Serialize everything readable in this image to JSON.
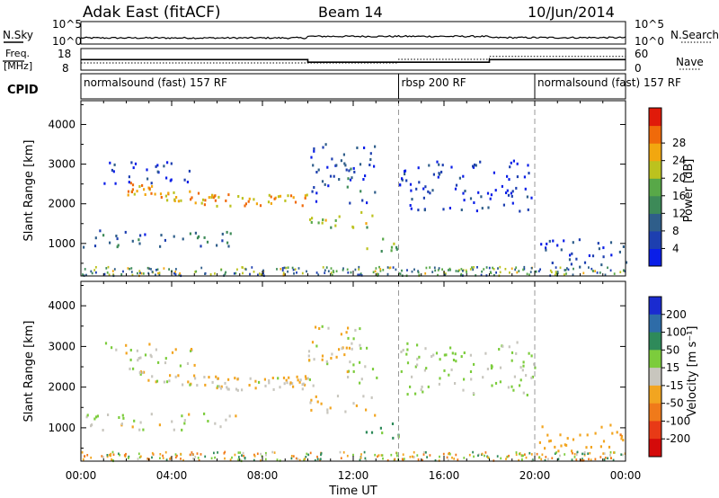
{
  "header": {
    "title": "Adak East (fitACF)",
    "beam": "Beam 14",
    "date": "10/Jun/2014"
  },
  "panels": {
    "noise": {
      "left_label": "N.Sky",
      "left_ticks": [
        "10^5",
        "10^0"
      ],
      "right_label": "N.Search",
      "right_ticks": [
        "10^5",
        "10^0"
      ]
    },
    "freq": {
      "left_label_1": "Freq.",
      "left_label_2": "[MHz]",
      "left_ticks": [
        "18",
        "8"
      ],
      "right_label": "Nave",
      "right_ticks": [
        "60",
        "0"
      ]
    },
    "cpid": {
      "label": "CPID",
      "segments": [
        {
          "text": "normalsound (fast) 157 RF",
          "start_h": 0,
          "end_h": 14
        },
        {
          "text": "rbsp 200 RF",
          "start_h": 14,
          "end_h": 20
        },
        {
          "text": "normalsound (fast) 157 RF",
          "start_h": 20,
          "end_h": 24
        }
      ]
    },
    "power": {
      "ylabel": "Slant Range [km]",
      "cbar_label": "Power [dB]"
    },
    "velocity": {
      "ylabel": "Slant Range [km]",
      "cbar_label": "Velocity [m s⁻¹]"
    },
    "xlabel": "Time UT"
  },
  "chart_data": {
    "type": "heatmap",
    "x_ticks": [
      "00:00",
      "04:00",
      "08:00",
      "12:00",
      "16:00",
      "20:00",
      "00:00"
    ],
    "xlim_hours": [
      0,
      24
    ],
    "y_ticks": [
      1000,
      2000,
      3000,
      4000
    ],
    "ylim_km": [
      180,
      4600
    ],
    "power_scale": {
      "ticks": [
        4,
        8,
        12,
        16,
        20,
        24,
        28
      ],
      "colors": [
        "#0a1ee8",
        "#1d3fb0",
        "#2f5e8a",
        "#3d8a58",
        "#58a848",
        "#bcc21e",
        "#f2a70f",
        "#f06a0a",
        "#e01a0a"
      ]
    },
    "velocity_scale": {
      "ticks": [
        200,
        100,
        50,
        15,
        -15,
        -50,
        -100,
        -200
      ],
      "colors": [
        "#1a2bd0",
        "#2e6ca8",
        "#2e8a5a",
        "#7ccc3c",
        "#c8c6be",
        "#f2a520",
        "#f07a1a",
        "#e83a16",
        "#d40a0a"
      ]
    },
    "noise": {
      "n_sky_log10_before_10UT": 0.8,
      "n_sky_log10_after_10UT": 1.3,
      "n_sky_log10_after_18UT": 0.9
    },
    "frequency_mhz": [
      {
        "start_h": 0,
        "end_h": 10,
        "value": 12.8
      },
      {
        "start_h": 10,
        "end_h": 18,
        "value": 11.0
      },
      {
        "start_h": 18,
        "end_h": 24,
        "value": 12.8
      }
    ],
    "nave": [
      {
        "start_h": 0,
        "end_h": 14,
        "value": 15
      },
      {
        "start_h": 14,
        "end_h": 18,
        "value": 30
      },
      {
        "start_h": 18,
        "end_h": 24,
        "value": 42
      }
    ],
    "mode_change_hours": [
      14,
      20
    ],
    "scatter_regions": [
      {
        "name": "main",
        "t0": 2.0,
        "t1": 10.0,
        "r0": 1700,
        "r1": 2600,
        "power": 24,
        "velocity": -5
      },
      {
        "name": "lower",
        "t0": 0.0,
        "t1": 7.0,
        "r0": 900,
        "r1": 1350,
        "power": 10,
        "velocity": 0
      },
      {
        "name": "upper",
        "t0": 1.0,
        "t1": 5.0,
        "r0": 2500,
        "r1": 3100,
        "power": 7,
        "velocity": 0
      },
      {
        "name": "post10_low",
        "t0": 10.0,
        "t1": 13.0,
        "r0": 1300,
        "r1": 1800,
        "power": 18,
        "velocity": -10
      },
      {
        "name": "post10_high",
        "t0": 10.0,
        "t1": 13.0,
        "r0": 2000,
        "r1": 3500,
        "power": 8,
        "velocity": 0
      },
      {
        "name": "green_blob",
        "t0": 12.4,
        "t1": 14.0,
        "r0": 700,
        "r1": 1150,
        "power": 18,
        "velocity": 30
      },
      {
        "name": "rbsp_band",
        "t0": 14.0,
        "t1": 20.0,
        "r0": 1800,
        "r1": 3100,
        "power": 6,
        "velocity": 10
      },
      {
        "name": "late_faint",
        "t0": 20.0,
        "t1": 24.0,
        "r0": 400,
        "r1": 1100,
        "power": 7,
        "velocity": -20
      }
    ]
  }
}
